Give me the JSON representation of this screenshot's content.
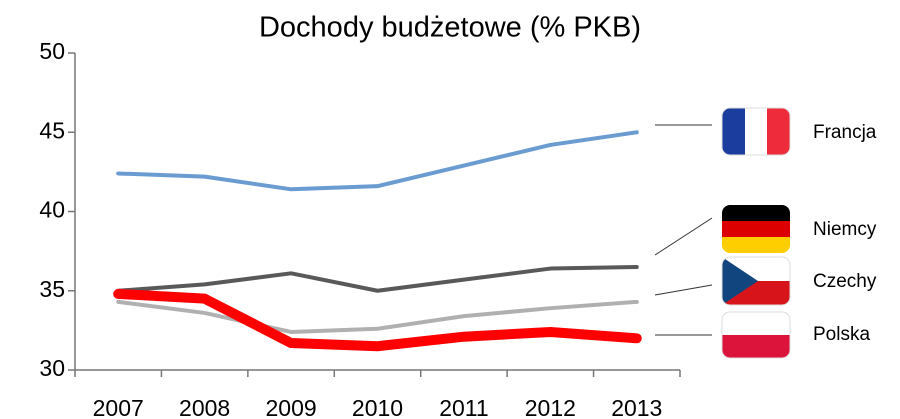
{
  "chart_data": {
    "type": "line",
    "title": "Dochody budżetowe (% PKB)",
    "categories": [
      "2007",
      "2008",
      "2009",
      "2010",
      "2011",
      "2012",
      "2013"
    ],
    "series": [
      {
        "name": "Francja",
        "color": "#6a9bd1",
        "values": [
          42.4,
          42.2,
          41.4,
          41.6,
          42.9,
          44.2,
          45.0
        ]
      },
      {
        "name": "Niemcy",
        "color": "#595959",
        "values": [
          35.0,
          35.4,
          36.1,
          35.0,
          35.7,
          36.4,
          36.5
        ]
      },
      {
        "name": "Czechy",
        "color": "#b0b0b0",
        "values": [
          34.3,
          33.6,
          32.4,
          32.6,
          33.4,
          33.9,
          34.3
        ]
      },
      {
        "name": "Polska",
        "color": "#ff0000",
        "values": [
          34.8,
          34.5,
          31.7,
          31.5,
          32.1,
          32.4,
          32.0
        ]
      }
    ],
    "ylim": [
      30,
      50
    ],
    "yticks": [
      30,
      35,
      40,
      45,
      50
    ],
    "grid": false,
    "legend": "right"
  }
}
